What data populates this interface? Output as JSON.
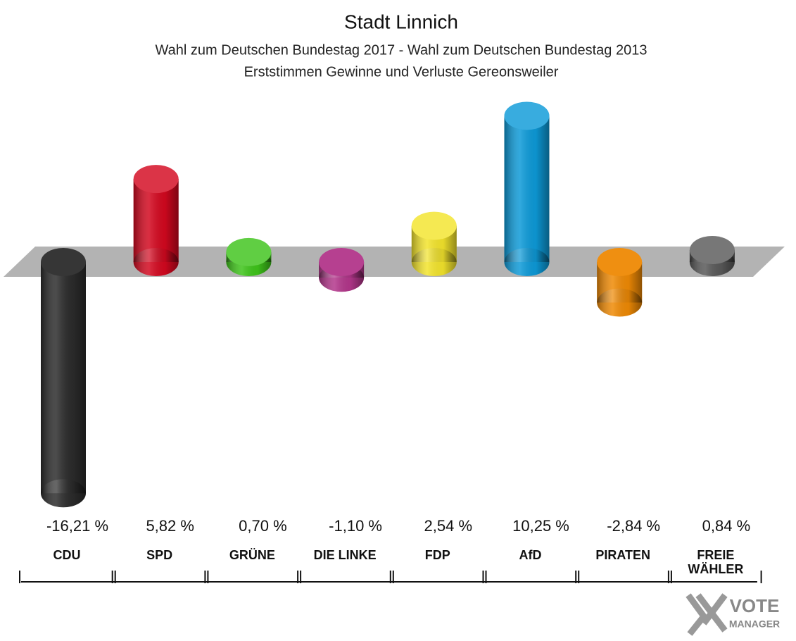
{
  "chart_data": {
    "type": "bar",
    "title": "Stadt Linnich",
    "subtitle": [
      "Wahl zum Deutschen Bundestag 2017 - Wahl zum Deutschen Bundestag 2013",
      "Erststimmen Gewinne und Verluste Gereonsweiler"
    ],
    "categories": [
      "CDU",
      "SPD",
      "GRÜNE",
      "DIE LINKE",
      "FDP",
      "AfD",
      "PIRATEN",
      "FREIE WÄHLER"
    ],
    "series": [
      {
        "name": "Gewinne und Verluste",
        "colors": [
          "#2c2c2c",
          "#d3081f",
          "#3ec41a",
          "#b3368b",
          "#f3e42c",
          "#0d9ad8",
          "#ef8a05",
          "#595959"
        ],
        "values": [
          -16.21,
          5.82,
          0.7,
          -1.1,
          2.54,
          10.25,
          -2.84,
          0.84
        ],
        "value_labels": [
          "-16,21 %",
          "5,82 %",
          "0,70 %",
          "-1,10 %",
          "2,54 %",
          "10,25 %",
          "-2,84 %",
          "0,84 %"
        ]
      }
    ],
    "logo": [
      "VOTE",
      "MANAGER"
    ]
  }
}
